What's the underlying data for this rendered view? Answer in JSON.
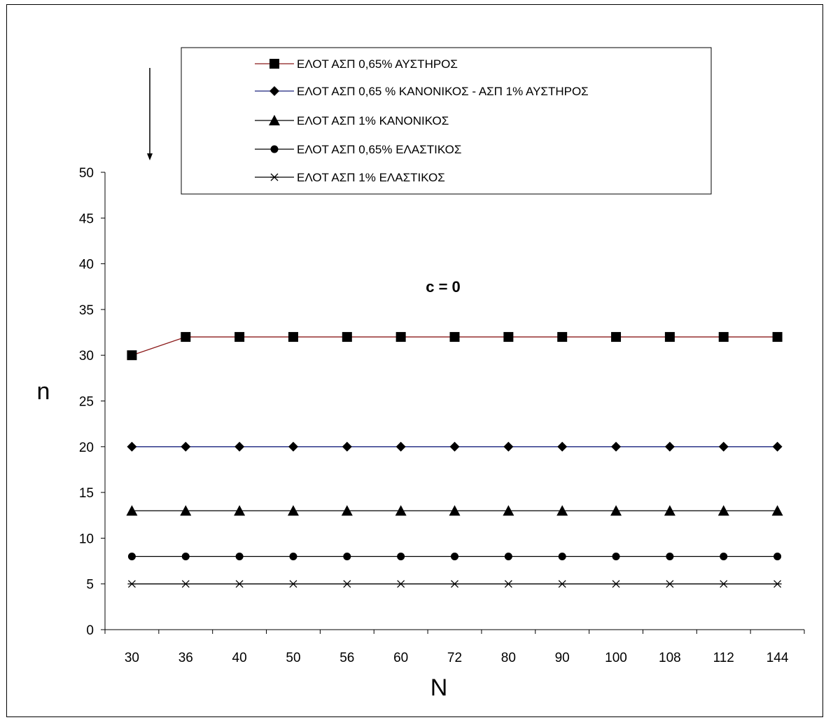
{
  "chart_data": {
    "type": "line",
    "title": "",
    "annotation": "c = 0",
    "xlabel": "N",
    "ylabel": "n",
    "categories": [
      "30",
      "36",
      "40",
      "50",
      "56",
      "60",
      "72",
      "80",
      "90",
      "100",
      "108",
      "112",
      "144"
    ],
    "ylim": [
      0,
      50
    ],
    "yticks": [
      0,
      5,
      10,
      15,
      20,
      25,
      30,
      35,
      40,
      45,
      50
    ],
    "grid": false,
    "legend_position": "top",
    "series": [
      {
        "name": "ΕΛΟΤ ΑΣΠ 0,65%  ΑΥΣΤΗΡΟΣ",
        "marker": "square",
        "line_color": "#8b1a1a",
        "values": [
          30,
          32,
          32,
          32,
          32,
          32,
          32,
          32,
          32,
          32,
          32,
          32,
          32
        ]
      },
      {
        "name": "ΕΛΟΤ ΑΣΠ 0,65 %  ΚΑΝΟΝΙΚΟΣ - ΑΣΠ 1% ΑΥΣΤΗΡΟΣ",
        "marker": "diamond",
        "line_color": "#1a237e",
        "values": [
          20,
          20,
          20,
          20,
          20,
          20,
          20,
          20,
          20,
          20,
          20,
          20,
          20
        ]
      },
      {
        "name": "ΕΛΟΤ ΑΣΠ 1%  ΚΑΝΟΝΙΚΟΣ",
        "marker": "triangle",
        "line_color": "#000000",
        "values": [
          13,
          13,
          13,
          13,
          13,
          13,
          13,
          13,
          13,
          13,
          13,
          13,
          13
        ]
      },
      {
        "name": "ΕΛΟΤ ΑΣΠ 0,65%  ΕΛΑΣΤΙΚΟΣ",
        "marker": "circle",
        "line_color": "#000000",
        "values": [
          8,
          8,
          8,
          8,
          8,
          8,
          8,
          8,
          8,
          8,
          8,
          8,
          8
        ]
      },
      {
        "name": "ΕΛΟΤ ΑΣΠ 1%  ΕΛΑΣΤΙΚΟΣ",
        "marker": "asterisk",
        "line_color": "#000000",
        "values": [
          5,
          5,
          5,
          5,
          5,
          5,
          5,
          5,
          5,
          5,
          5,
          5,
          5
        ]
      }
    ]
  }
}
